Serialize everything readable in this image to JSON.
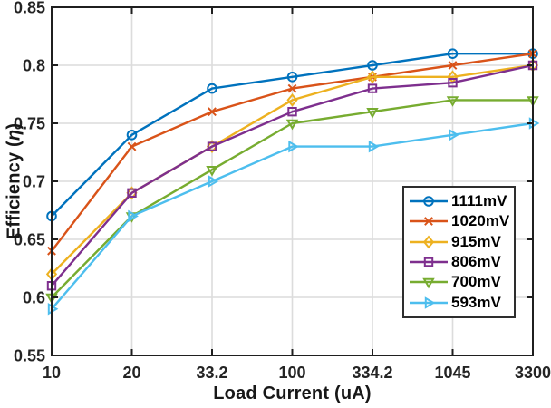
{
  "figure": {
    "background": "#ffffff",
    "axis_color": "#1f1f1f",
    "grid_color": "#dcdcdc",
    "tick_label_color": "#242424",
    "legend_border_color": "#2e2e2e"
  },
  "chart_data": {
    "type": "line",
    "title": "",
    "xlabel": "Load Current (uA)",
    "ylabel": "Efficiency (η)",
    "ylabel_parts": {
      "prefix": "Efficiency (",
      "symbol": "η",
      "suffix": ")"
    },
    "categories": [
      "10",
      "20",
      "33.2",
      "100",
      "334.2",
      "1045",
      "3300"
    ],
    "x_tick_values": [
      10,
      20,
      33.2,
      100,
      334.2,
      1045,
      3300
    ],
    "ylim": [
      0.55,
      0.85
    ],
    "yticks": [
      0.55,
      0.6,
      0.65,
      0.7,
      0.75,
      0.8,
      0.85
    ],
    "ytick_labels": [
      "0.55",
      "0.6",
      "0.65",
      "0.7",
      "0.75",
      "0.8",
      "0.85"
    ],
    "grid": true,
    "legend_position": "inside-middle-right",
    "series": [
      {
        "name": "1111mV",
        "color": "#0072BD",
        "marker": "circle",
        "values": [
          0.67,
          0.74,
          0.78,
          0.79,
          0.8,
          0.81,
          0.81
        ]
      },
      {
        "name": "1020mV",
        "color": "#D95319",
        "marker": "x",
        "values": [
          0.64,
          0.73,
          0.76,
          0.78,
          0.79,
          0.8,
          0.81
        ]
      },
      {
        "name": "915mV",
        "color": "#EDB120",
        "marker": "diamond",
        "values": [
          0.62,
          0.69,
          0.73,
          0.77,
          0.79,
          0.79,
          0.8
        ]
      },
      {
        "name": "806mV",
        "color": "#7E2F8E",
        "marker": "square",
        "values": [
          0.61,
          0.69,
          0.73,
          0.76,
          0.78,
          0.785,
          0.8
        ]
      },
      {
        "name": "700mV",
        "color": "#77AC30",
        "marker": "triangle-down",
        "values": [
          0.6,
          0.67,
          0.71,
          0.75,
          0.76,
          0.77,
          0.77
        ]
      },
      {
        "name": "593mV",
        "color": "#4DBEEE",
        "marker": "triangle-right",
        "values": [
          0.59,
          0.67,
          0.7,
          0.73,
          0.73,
          0.74,
          0.75
        ]
      }
    ]
  }
}
